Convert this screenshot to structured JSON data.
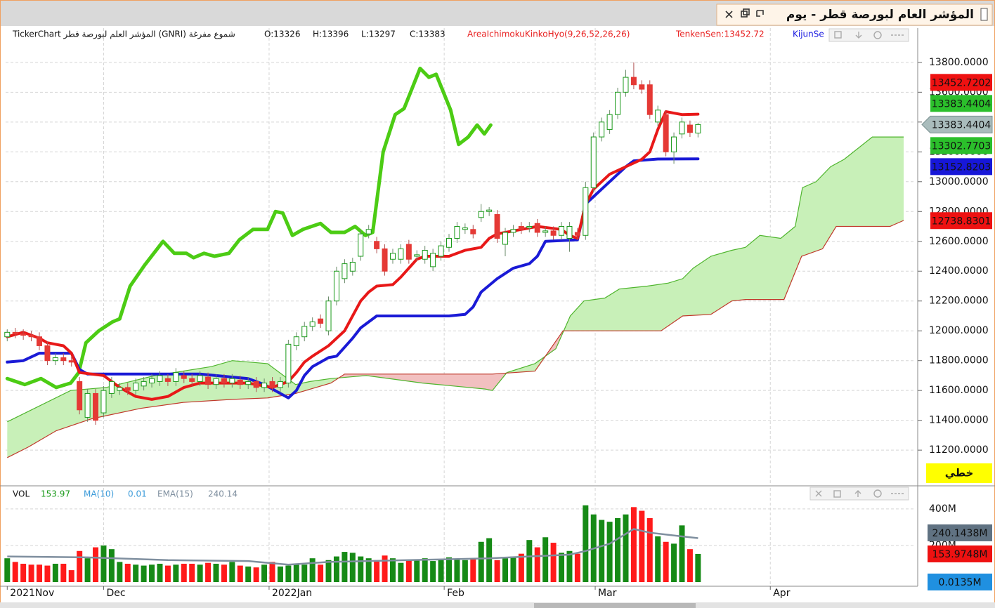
{
  "window": {
    "title": "المؤشر العام لبورصة قطر - يوم"
  },
  "chart_data": [
    {
      "type": "candlestick",
      "header": "TickerChart المؤشر العلم لبورصة قطر (GNRI) شموع مفرغة",
      "ohlc_text": [
        "O:13326",
        "H:13396",
        "L:13297",
        "C:13383"
      ],
      "indicator_texts": [
        {
          "text": "AreaIchimokuKinkoHyo(9,26,52,26,26)",
          "color": "#e82020"
        },
        {
          "text": "TenkenSen:13452.72",
          "color": "#e82020"
        },
        {
          "text": "KijunSe",
          "color": "#1818e0"
        }
      ],
      "open": [
        11960,
        11990,
        11980,
        11970,
        11960,
        11900,
        11800,
        11820,
        11800,
        11660,
        11420,
        11580,
        11450,
        11580,
        11600,
        11620,
        11600,
        11630,
        11650,
        11660,
        11680,
        11660,
        11700,
        11680,
        11660,
        11690,
        11640,
        11680,
        11650,
        11670,
        11640,
        11660,
        11620,
        11660,
        11620,
        11650,
        11900,
        11960,
        12030,
        12080,
        12000,
        12200,
        12350,
        12400,
        12500,
        12650,
        12600,
        12550,
        12480,
        12480,
        12580,
        12500,
        12480,
        12430,
        12500,
        12560,
        12620,
        12680,
        12680,
        12760,
        12800,
        12780,
        12580,
        12660,
        12700,
        12690,
        12720,
        12660,
        12670,
        12640,
        12620,
        12660,
        12640,
        12960,
        13300,
        13350,
        13450,
        13600,
        13700,
        13650,
        13650,
        13400,
        13450,
        13200,
        13320,
        13380,
        13326
      ],
      "high": [
        12010,
        12020,
        12010,
        12000,
        11990,
        11930,
        11850,
        11850,
        11830,
        11690,
        11610,
        11610,
        11630,
        11690,
        11650,
        11650,
        11680,
        11690,
        11710,
        11730,
        11710,
        11750,
        11730,
        11710,
        11730,
        11720,
        11710,
        11710,
        11710,
        11700,
        11690,
        11690,
        11680,
        11690,
        11690,
        11940,
        11990,
        12060,
        12090,
        12110,
        12230,
        12430,
        12480,
        12490,
        12680,
        12710,
        12630,
        12580,
        12550,
        12580,
        12610,
        12540,
        12570,
        12550,
        12600,
        12650,
        12730,
        12720,
        12710,
        12850,
        12830,
        12810,
        12690,
        12710,
        12730,
        12730,
        12750,
        12700,
        12700,
        12730,
        12730,
        12690,
        13000,
        13330,
        13430,
        13480,
        13630,
        13750,
        13800,
        13680,
        13680,
        13510,
        13480,
        13330,
        13430,
        13410,
        13396
      ],
      "low": [
        11930,
        11950,
        11940,
        11930,
        11870,
        11770,
        11770,
        11770,
        11760,
        11440,
        11390,
        11370,
        11420,
        11550,
        11570,
        11570,
        11570,
        11600,
        11620,
        11630,
        11630,
        11630,
        11650,
        11630,
        11630,
        11610,
        11610,
        11620,
        11620,
        11610,
        11610,
        11590,
        11590,
        11590,
        11590,
        11620,
        11870,
        11930,
        12000,
        12020,
        11970,
        12170,
        12320,
        12370,
        12470,
        12620,
        12520,
        12370,
        12450,
        12450,
        12450,
        12470,
        12450,
        12400,
        12470,
        12530,
        12590,
        12650,
        12620,
        12730,
        12770,
        12590,
        12500,
        12630,
        12650,
        12660,
        12630,
        12630,
        12610,
        12610,
        12530,
        12610,
        12610,
        12930,
        13270,
        13320,
        13420,
        13570,
        13620,
        13590,
        13420,
        13370,
        13170,
        13120,
        13290,
        13300,
        13297
      ],
      "close": [
        11990,
        11980,
        11970,
        11960,
        11900,
        11800,
        11820,
        11800,
        11790,
        11470,
        11580,
        11400,
        11600,
        11660,
        11620,
        11600,
        11650,
        11660,
        11680,
        11700,
        11660,
        11720,
        11680,
        11660,
        11700,
        11640,
        11680,
        11650,
        11680,
        11640,
        11660,
        11620,
        11650,
        11620,
        11660,
        11910,
        11960,
        12030,
        12060,
        12050,
        12200,
        12400,
        12450,
        12460,
        12650,
        12680,
        12550,
        12400,
        12520,
        12550,
        12480,
        12510,
        12540,
        12520,
        12570,
        12620,
        12700,
        12690,
        12650,
        12800,
        12810,
        12620,
        12660,
        12680,
        12680,
        12700,
        12660,
        12670,
        12640,
        12700,
        12700,
        12640,
        12960,
        13300,
        13400,
        13450,
        13600,
        13700,
        13650,
        13620,
        13450,
        13480,
        13200,
        13300,
        13400,
        13330,
        13383
      ],
      "up_color": "#1a9a1a",
      "down_color": "#e53935",
      "xlim": [
        -0.2,
        113
      ],
      "xticks": [
        {
          "value": 0,
          "label": "2021Nov"
        },
        {
          "value": 12,
          "label": "Dec"
        },
        {
          "value": 32.6,
          "label": "2022Jan"
        },
        {
          "value": 54.4,
          "label": "Feb"
        },
        {
          "value": 73.2,
          "label": "Mar"
        },
        {
          "value": 95,
          "label": "Apr"
        }
      ],
      "ylim": [
        10970,
        14030
      ],
      "yticks": [
        {
          "value": 13800,
          "label": "13800.0000"
        },
        {
          "value": 13600,
          "label": "13600.0000"
        },
        {
          "value": 13400,
          "label": "13400.0000"
        },
        {
          "value": 13200,
          "label": "13200.0000"
        },
        {
          "value": 13000,
          "label": "13000.0000"
        },
        {
          "value": 12800,
          "label": "12800.0000"
        },
        {
          "value": 12600,
          "label": "12600.0000"
        },
        {
          "value": 12400,
          "label": "12400.0000"
        },
        {
          "value": 12200,
          "label": "12200.0000"
        },
        {
          "value": 12000,
          "label": "12000.0000"
        },
        {
          "value": 11800,
          "label": "11800.0000"
        },
        {
          "value": 11600,
          "label": "11600.0000"
        },
        {
          "value": 11400,
          "label": "11400.0000"
        },
        {
          "value": 11200,
          "label": "11200.0000"
        }
      ],
      "grid": true,
      "cloud": {
        "senkou_a": {
          "color": "#4fb52e",
          "x": [
            0,
            7.9,
            12.3,
            18.4,
            25.4,
            28,
            32.4,
            35.9,
            37.7,
            40.3,
            44.7,
            51.7,
            59.5,
            60.4,
            62.2,
            65.7,
            68.3,
            70.1,
            71.8,
            74.4,
            76.2,
            79.7,
            82.3,
            84.1,
            85.4,
            87.6,
            90.2,
            91.9,
            93.7,
            96.3,
            98.1,
            99,
            100.7,
            102.5,
            104.2,
            107.7,
            111.6
          ],
          "values": [
            11390,
            11600,
            11620,
            11700,
            11760,
            11800,
            11780,
            11640,
            11660,
            11680,
            11700,
            11650,
            11610,
            11600,
            11720,
            11780,
            11880,
            12100,
            12200,
            12220,
            12280,
            12300,
            12320,
            12350,
            12420,
            12500,
            12540,
            12560,
            12640,
            12620,
            12700,
            12960,
            13000,
            13100,
            13150,
            13300,
            13300
          ]
        },
        "senkou_b": {
          "color": "#c0392b",
          "x": [
            0,
            2.6,
            6.1,
            10.5,
            16.6,
            21.9,
            28,
            32.4,
            35.9,
            40.3,
            42,
            60.4,
            65.7,
            69.2,
            81.4,
            84.1,
            87.6,
            90.2,
            91.9,
            96.7,
            98.9,
            101.5,
            103.2,
            109.9,
            111.6
          ],
          "values": [
            11150,
            11220,
            11330,
            11410,
            11480,
            11520,
            11540,
            11550,
            11580,
            11650,
            11710,
            11710,
            11730,
            12000,
            12000,
            12100,
            12110,
            12200,
            12210,
            12210,
            12500,
            12550,
            12700,
            12700,
            12740
          ]
        },
        "up_fill": "#c8f0b8",
        "down_fill": "#f2c0c0"
      },
      "lines": {
        "chikou": {
          "color": "#4ccc14",
          "width": 5,
          "x": [
            0,
            2.2,
            4.2,
            6.1,
            7.9,
            8.9,
            9.8,
            11.4,
            13.1,
            14,
            15.3,
            17.1,
            19.4,
            20.8,
            22.3,
            23.2,
            24.5,
            25.8,
            27.6,
            28.9,
            30.6,
            32.4,
            33.4,
            34.3,
            35.5,
            36.8,
            39,
            40.3,
            42,
            43.3,
            44.6,
            45.5,
            46.8,
            48.3,
            49.4,
            51.4,
            52.5,
            53.4,
            55.2,
            56.2,
            57.4,
            58.5,
            59.4,
            60.2
          ],
          "values": [
            11680,
            11640,
            11680,
            11620,
            11650,
            11720,
            11920,
            12000,
            12060,
            12080,
            12300,
            12440,
            12600,
            12520,
            12520,
            12490,
            12520,
            12500,
            12520,
            12610,
            12680,
            12680,
            12800,
            12790,
            12640,
            12680,
            12720,
            12660,
            12660,
            12700,
            12640,
            12660,
            13200,
            13450,
            13490,
            13760,
            13700,
            13720,
            13480,
            13250,
            13300,
            13380,
            13320,
            13380
          ]
        },
        "kijun": {
          "color": "#1a1ad6",
          "width": 4,
          "x": [
            0,
            2,
            4,
            8,
            9,
            10,
            24,
            30,
            32,
            34,
            35,
            36,
            37,
            38,
            40,
            41,
            43,
            44,
            46,
            55,
            57,
            58,
            59,
            61,
            63,
            65,
            66,
            67,
            71,
            72,
            73,
            75,
            76,
            77,
            78,
            81,
            86
          ],
          "values": [
            11790,
            11800,
            11850,
            11850,
            11740,
            11710,
            11710,
            11680,
            11640,
            11580,
            11550,
            11600,
            11700,
            11760,
            11820,
            11830,
            11950,
            12020,
            12100,
            12100,
            12110,
            12160,
            12260,
            12350,
            12420,
            12450,
            12500,
            12600,
            12610,
            12850,
            12900,
            13000,
            13050,
            13100,
            13140,
            13152,
            13152.82
          ]
        },
        "tenkan": {
          "color": "#e81818",
          "width": 4,
          "x": [
            0,
            2,
            4,
            5,
            7,
            8,
            9,
            12,
            13,
            14,
            16,
            18,
            20,
            22,
            24,
            30,
            33,
            35,
            36,
            37,
            38,
            40,
            42,
            43,
            44,
            45,
            46,
            48,
            49,
            50,
            51,
            52,
            55,
            57,
            59,
            60,
            61,
            64,
            66,
            69,
            70,
            71,
            72,
            73,
            74,
            75,
            77,
            79,
            80,
            81,
            82,
            84,
            86
          ],
          "values": [
            11960,
            11990,
            11950,
            11920,
            11900,
            11850,
            11720,
            11700,
            11660,
            11620,
            11560,
            11540,
            11560,
            11620,
            11650,
            11650,
            11620,
            11660,
            11720,
            11790,
            11830,
            11900,
            12000,
            12100,
            12200,
            12260,
            12300,
            12310,
            12360,
            12420,
            12480,
            12500,
            12500,
            12540,
            12560,
            12620,
            12650,
            12680,
            12700,
            12680,
            12640,
            12620,
            12850,
            12950,
            13000,
            13050,
            13100,
            13150,
            13200,
            13350,
            13470,
            13450,
            13452.72
          ]
        }
      },
      "price_labels": [
        {
          "label": "13452.7202",
          "value": 13452.7202,
          "color": "#ee1111",
          "text_color": "#ffffff"
        },
        {
          "label": "13383.4404",
          "value": 13383.4404,
          "color": "#2bbf2b",
          "text_color": "#0a2a0a"
        },
        {
          "label": "13383.4404",
          "value": 13383.4404,
          "color": "#a9bcbc",
          "text_color": "#1a2a2a",
          "shape": "arrow"
        },
        {
          "label": "13302.7703",
          "value": 13302.7703,
          "color": "#2bbf2b",
          "text_color": "#0a2a0a"
        },
        {
          "label": "13152.8203",
          "value": 13152.8203,
          "color": "#1717d8",
          "text_color": "#ffffff"
        },
        {
          "label": "12738.8301",
          "value": 12738.8301,
          "color": "#ee1111",
          "text_color": "#ffffff"
        }
      ],
      "style_button": "خطي"
    },
    {
      "type": "bar",
      "indicators": [
        {
          "text": "VOL",
          "color": "#111111"
        },
        {
          "value": 153.97,
          "color": "#1a9a1a"
        },
        {
          "text": "MA(10)",
          "color": "#3a9ad9"
        },
        {
          "value": 0.01,
          "color": "#3a9ad9"
        },
        {
          "text": "EMA(15)",
          "color": "#7f8f9f"
        },
        {
          "value": 240.14,
          "color": "#7f8f9f"
        }
      ],
      "values": [
        130,
        110,
        100,
        95,
        95,
        90,
        100,
        100,
        65,
        170,
        130,
        190,
        200,
        180,
        110,
        100,
        95,
        90,
        95,
        100,
        90,
        95,
        100,
        100,
        95,
        105,
        100,
        95,
        110,
        90,
        85,
        80,
        95,
        110,
        85,
        90,
        100,
        95,
        130,
        95,
        120,
        140,
        165,
        160,
        140,
        130,
        120,
        145,
        130,
        105,
        120,
        125,
        130,
        115,
        125,
        135,
        125,
        120,
        125,
        220,
        240,
        120,
        130,
        140,
        155,
        230,
        190,
        245,
        215,
        160,
        170,
        155,
        420,
        370,
        340,
        330,
        350,
        370,
        410,
        390,
        350,
        250,
        220,
        210,
        310,
        180,
        153.97
      ],
      "up_color": "#168a16",
      "down_color": "#ff1a1a",
      "ylim": [
        0,
        515
      ],
      "yticks": [
        {
          "value": 400,
          "label": "400M"
        },
        {
          "value": 200,
          "label": "200M"
        }
      ],
      "ma": {
        "color": "#7f8f9f",
        "x": [
          0,
          10,
          20,
          30,
          35,
          40,
          50,
          60,
          70,
          72,
          75,
          78,
          80,
          84,
          86
        ],
        "values": [
          140,
          135,
          120,
          115,
          95,
          110,
          120,
          130,
          150,
          170,
          210,
          290,
          270,
          250,
          240.14
        ]
      },
      "price_labels": [
        {
          "label": "240.1438M",
          "value": 240.1438,
          "color": "#607282",
          "text_color": "#ffffff"
        },
        {
          "label": "153.9748M",
          "value": 153.9748,
          "color": "#ee1111",
          "text_color": "#ffffff"
        },
        {
          "label": "0.0135M",
          "value": 0.0135,
          "color": "#2090e0",
          "text_color": "#ffffff"
        }
      ]
    }
  ]
}
